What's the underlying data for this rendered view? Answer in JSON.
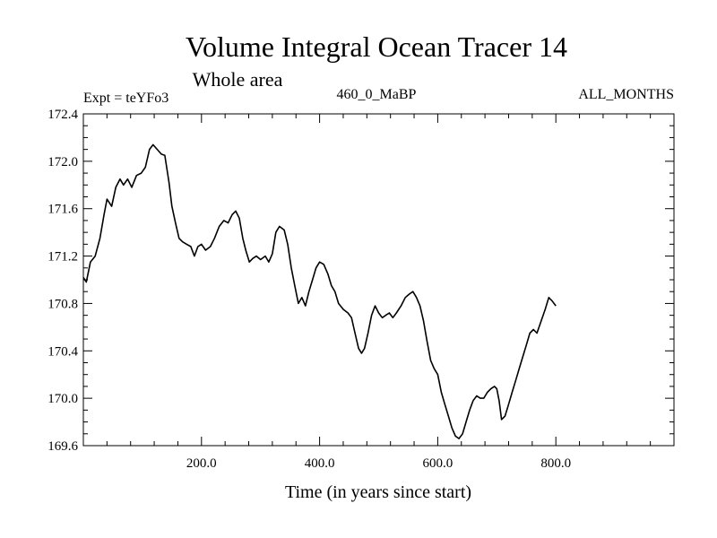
{
  "header": {
    "title": "Volume Integral Ocean Tracer 14",
    "subtitle": "Whole area",
    "left_label": "Expt = teYFo3",
    "center_label": "460_0_MaBP",
    "right_label": "ALL_MONTHS"
  },
  "chart_data": {
    "type": "line",
    "xlabel": "Time (in years since start)",
    "ylabel": "",
    "xlim": [
      0,
      1000
    ],
    "ylim": [
      169.6,
      172.4
    ],
    "x_ticks": [
      {
        "value": 200,
        "label": "200.0"
      },
      {
        "value": 400,
        "label": "400.0"
      },
      {
        "value": 600,
        "label": "600.0"
      },
      {
        "value": 800,
        "label": "800.0"
      }
    ],
    "y_ticks": [
      {
        "value": 169.6,
        "label": "169.6"
      },
      {
        "value": 170.0,
        "label": "170.0"
      },
      {
        "value": 170.4,
        "label": "170.4"
      },
      {
        "value": 170.8,
        "label": "170.8"
      },
      {
        "value": 171.2,
        "label": "171.2"
      },
      {
        "value": 171.6,
        "label": "171.6"
      },
      {
        "value": 172.0,
        "label": "172.0"
      },
      {
        "value": 172.4,
        "label": "172.4"
      }
    ],
    "series": [
      {
        "color": "#000000",
        "points": [
          [
            0,
            171.02
          ],
          [
            5,
            170.98
          ],
          [
            12,
            171.15
          ],
          [
            20,
            171.2
          ],
          [
            28,
            171.35
          ],
          [
            35,
            171.55
          ],
          [
            40,
            171.68
          ],
          [
            48,
            171.62
          ],
          [
            55,
            171.78
          ],
          [
            62,
            171.85
          ],
          [
            68,
            171.8
          ],
          [
            75,
            171.85
          ],
          [
            82,
            171.78
          ],
          [
            90,
            171.88
          ],
          [
            98,
            171.9
          ],
          [
            105,
            171.95
          ],
          [
            112,
            172.1
          ],
          [
            118,
            172.14
          ],
          [
            125,
            172.1
          ],
          [
            132,
            172.06
          ],
          [
            138,
            172.05
          ],
          [
            145,
            171.82
          ],
          [
            150,
            171.62
          ],
          [
            156,
            171.48
          ],
          [
            162,
            171.35
          ],
          [
            168,
            171.32
          ],
          [
            175,
            171.3
          ],
          [
            182,
            171.28
          ],
          [
            188,
            171.2
          ],
          [
            194,
            171.28
          ],
          [
            200,
            171.3
          ],
          [
            207,
            171.25
          ],
          [
            215,
            171.28
          ],
          [
            222,
            171.35
          ],
          [
            230,
            171.45
          ],
          [
            238,
            171.5
          ],
          [
            245,
            171.48
          ],
          [
            252,
            171.55
          ],
          [
            258,
            171.58
          ],
          [
            264,
            171.52
          ],
          [
            270,
            171.35
          ],
          [
            275,
            171.25
          ],
          [
            281,
            171.15
          ],
          [
            287,
            171.18
          ],
          [
            293,
            171.2
          ],
          [
            300,
            171.17
          ],
          [
            308,
            171.2
          ],
          [
            314,
            171.15
          ],
          [
            320,
            171.22
          ],
          [
            326,
            171.4
          ],
          [
            332,
            171.45
          ],
          [
            340,
            171.42
          ],
          [
            346,
            171.3
          ],
          [
            352,
            171.1
          ],
          [
            358,
            170.95
          ],
          [
            364,
            170.8
          ],
          [
            370,
            170.85
          ],
          [
            376,
            170.78
          ],
          [
            382,
            170.9
          ],
          [
            388,
            171.0
          ],
          [
            394,
            171.1
          ],
          [
            400,
            171.15
          ],
          [
            407,
            171.13
          ],
          [
            414,
            171.05
          ],
          [
            420,
            170.95
          ],
          [
            426,
            170.9
          ],
          [
            432,
            170.8
          ],
          [
            440,
            170.75
          ],
          [
            448,
            170.72
          ],
          [
            454,
            170.68
          ],
          [
            460,
            170.55
          ],
          [
            466,
            170.42
          ],
          [
            471,
            170.38
          ],
          [
            476,
            170.42
          ],
          [
            482,
            170.55
          ],
          [
            488,
            170.7
          ],
          [
            494,
            170.78
          ],
          [
            500,
            170.72
          ],
          [
            506,
            170.68
          ],
          [
            512,
            170.7
          ],
          [
            518,
            170.72
          ],
          [
            524,
            170.68
          ],
          [
            530,
            170.72
          ],
          [
            538,
            170.78
          ],
          [
            545,
            170.85
          ],
          [
            552,
            170.88
          ],
          [
            558,
            170.9
          ],
          [
            564,
            170.85
          ],
          [
            570,
            170.78
          ],
          [
            576,
            170.65
          ],
          [
            582,
            170.48
          ],
          [
            588,
            170.32
          ],
          [
            594,
            170.25
          ],
          [
            600,
            170.2
          ],
          [
            606,
            170.05
          ],
          [
            612,
            169.95
          ],
          [
            618,
            169.85
          ],
          [
            624,
            169.75
          ],
          [
            630,
            169.68
          ],
          [
            636,
            169.66
          ],
          [
            642,
            169.7
          ],
          [
            648,
            169.8
          ],
          [
            654,
            169.9
          ],
          [
            660,
            169.98
          ],
          [
            666,
            170.02
          ],
          [
            672,
            170.0
          ],
          [
            678,
            170.0
          ],
          [
            684,
            170.05
          ],
          [
            690,
            170.08
          ],
          [
            696,
            170.1
          ],
          [
            700,
            170.08
          ],
          [
            704,
            169.98
          ],
          [
            708,
            169.82
          ],
          [
            714,
            169.85
          ],
          [
            720,
            169.95
          ],
          [
            726,
            170.05
          ],
          [
            732,
            170.15
          ],
          [
            738,
            170.25
          ],
          [
            744,
            170.35
          ],
          [
            750,
            170.45
          ],
          [
            756,
            170.55
          ],
          [
            762,
            170.58
          ],
          [
            768,
            170.55
          ],
          [
            775,
            170.65
          ],
          [
            782,
            170.75
          ],
          [
            788,
            170.85
          ],
          [
            794,
            170.82
          ],
          [
            800,
            170.78
          ]
        ]
      }
    ]
  }
}
